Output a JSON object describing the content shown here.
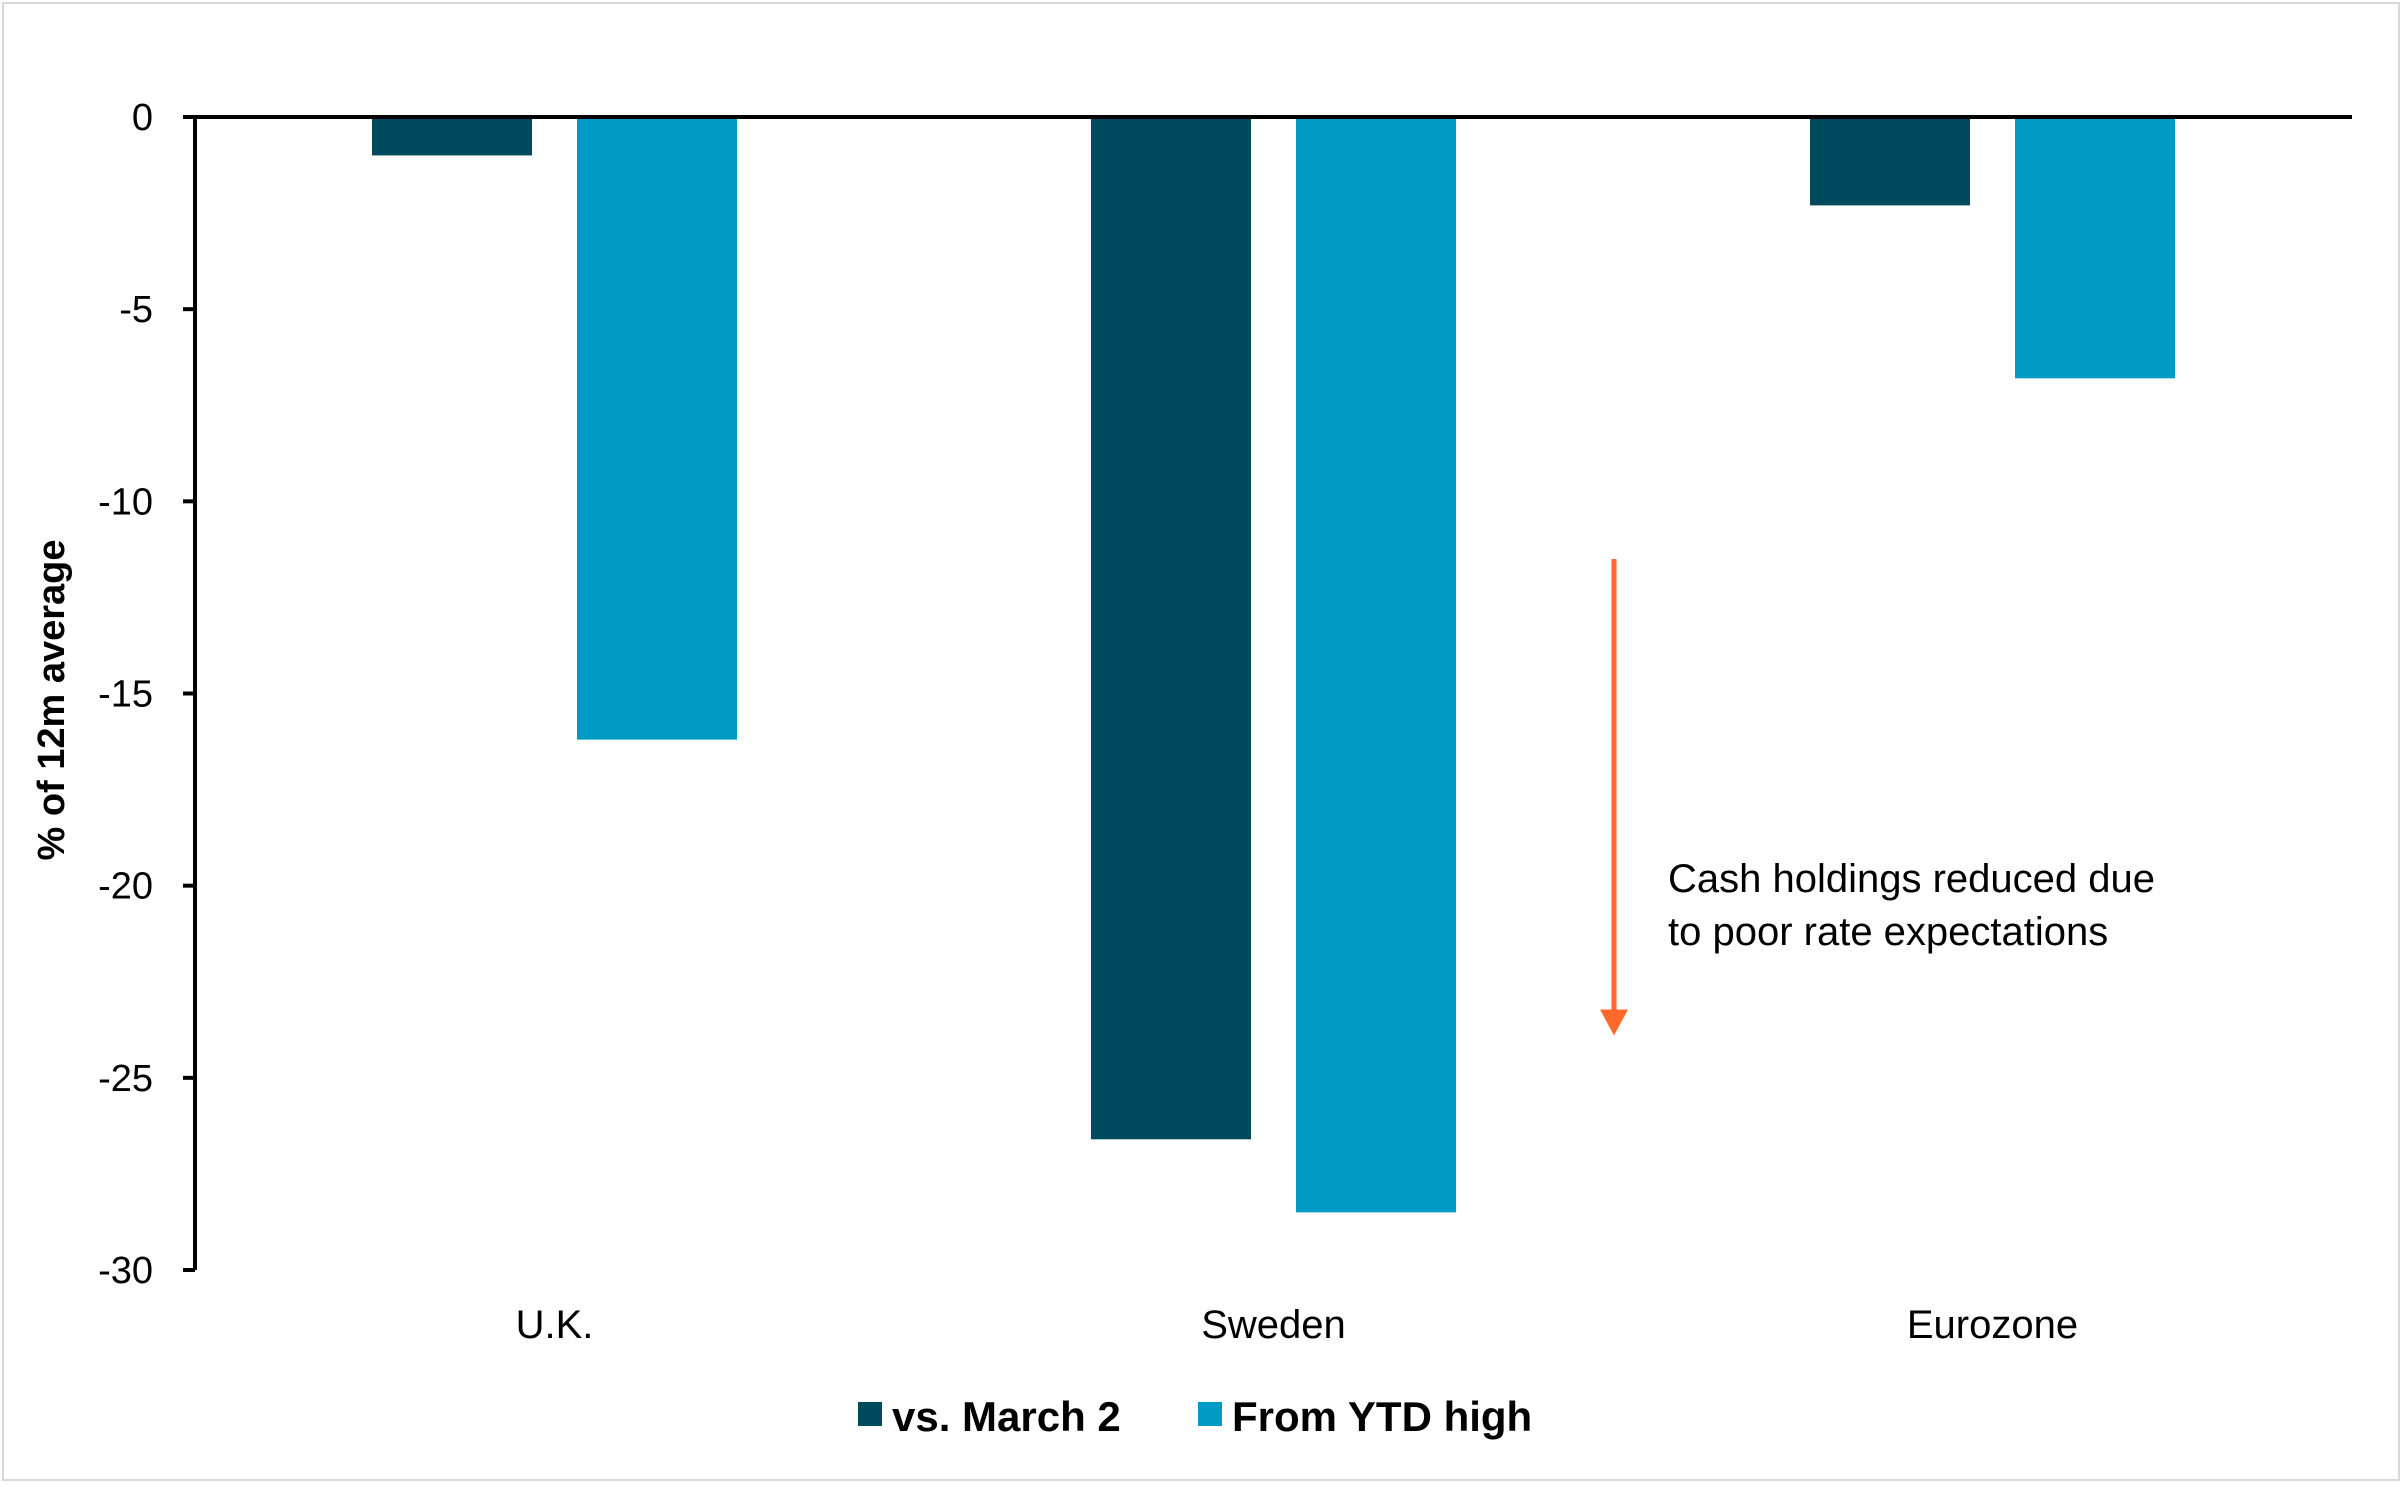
{
  "chart_data": {
    "type": "bar",
    "title": "",
    "xlabel": "",
    "ylabel": "% of 12m average",
    "categories": [
      "U.K.",
      "Sweden",
      "Eurozone"
    ],
    "series": [
      {
        "name": "vs. March 2",
        "color": "#004a5e",
        "values": [
          -1.0,
          -26.6,
          -2.3
        ]
      },
      {
        "name": "From YTD high",
        "color": "#009ac7",
        "values": [
          -16.2,
          -28.5,
          -6.8
        ]
      }
    ],
    "ylim": [
      -30,
      0
    ],
    "yticks": [
      0,
      -5,
      -10,
      -15,
      -20,
      -25,
      -30
    ],
    "grid": false,
    "legend": "bottom",
    "annotation": {
      "lines": [
        "Cash holdings reduced due",
        "to poor rate expectations"
      ],
      "arrow_color": "#ff6a2b",
      "arrow_from_value": -11.5,
      "arrow_to_value": -23.9
    }
  }
}
